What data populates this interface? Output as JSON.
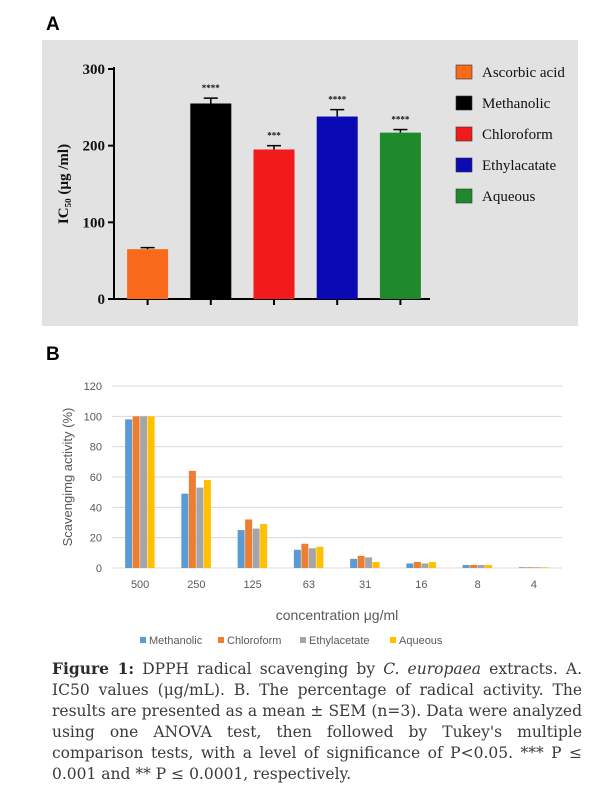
{
  "panel_a_label": "A",
  "panel_b_label": "B",
  "caption": {
    "label": "Figure 1:",
    "text_before_species": " DPPH radical scavenging by ",
    "species": "C. europaea",
    "text_after_species": " extracts. A. IC50 values (μg/mL). B. The percentage of radical activity. The results are presented as a mean ± SEM (n=3). Data were analyzed using one  ANOVA test, then followed by Tukey's multiple comparison tests, with a level of significance of P<0.05. *** P ≤ 0.001 and ** P ≤ 0.0001, respectively."
  },
  "chart_data": [
    {
      "type": "bar",
      "panel": "A",
      "ylabel": "IC₅₀ (µg /ml)",
      "ylim": [
        0,
        300
      ],
      "yticks": [
        "0",
        "100",
        "200",
        "300"
      ],
      "categories": [
        "Ascorbic acid",
        "Methanolic",
        "Chloroform",
        "Ethylacatate",
        "Aqueous"
      ],
      "values": [
        65,
        255,
        195,
        238,
        217
      ],
      "errors": [
        2,
        7,
        5,
        9,
        4
      ],
      "significance": [
        "",
        "****",
        "***",
        "****",
        "****"
      ],
      "colors": [
        "#f96a1c",
        "#000000",
        "#f21a1a",
        "#0a0ab4",
        "#1e8a2c"
      ],
      "legend_position": "right",
      "grid": false
    },
    {
      "type": "bar",
      "panel": "B",
      "xlabel": "concentration μg/ml",
      "ylabel": "Scavengimg activity (%)",
      "ylim": [
        0,
        120
      ],
      "yticks": [
        "0",
        "20",
        "40",
        "60",
        "80",
        "100",
        "120"
      ],
      "categories": [
        "500",
        "250",
        "125",
        "63",
        "31",
        "16",
        "8",
        "4"
      ],
      "series": [
        {
          "name": "Methanolic",
          "color": "#5b9bd5",
          "values": [
            98,
            49,
            25,
            12,
            6,
            3,
            2,
            0.5
          ]
        },
        {
          "name": "Chloroform",
          "color": "#ed7d31",
          "values": [
            100,
            64,
            32,
            16,
            8,
            4,
            2,
            0.5
          ]
        },
        {
          "name": "Ethylacetate",
          "color": "#a5a5a5",
          "values": [
            100,
            53,
            26,
            13,
            7,
            3,
            2,
            0.5
          ]
        },
        {
          "name": "Aqueous",
          "color": "#ffc000",
          "values": [
            100,
            58,
            29,
            14,
            4,
            4,
            2,
            0.5
          ]
        }
      ],
      "legend_position": "bottom",
      "grid": true
    }
  ]
}
